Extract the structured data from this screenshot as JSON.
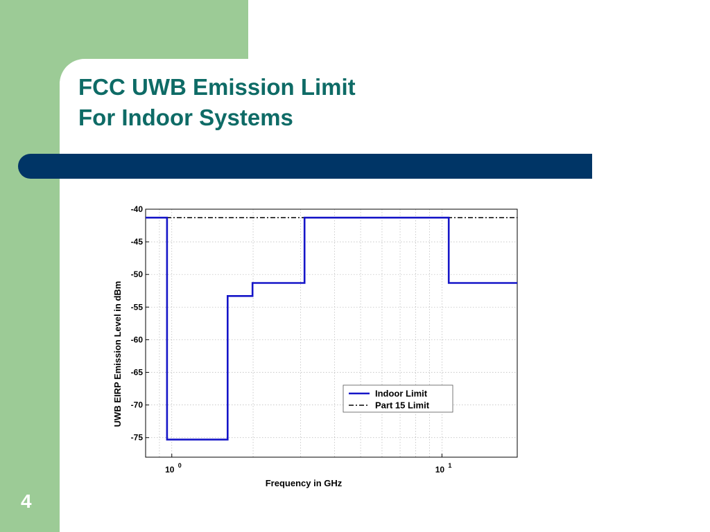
{
  "slide": {
    "title_line1": "FCC UWB Emission Limit",
    "title_line2": "For Indoor Systems",
    "page_number": "4",
    "colors": {
      "sidebar_green": "#9ccb96",
      "title_teal": "#0e6b66",
      "bar_navy": "#003566"
    }
  },
  "chart_data": {
    "type": "line",
    "xlabel": "Frequency in GHz",
    "ylabel": "UWB EIRP Emission Level in dBm",
    "x_scale": "log",
    "xlim": [
      0.8,
      19
    ],
    "ylim": [
      -78,
      -40
    ],
    "grid": true,
    "x_ticks": [
      {
        "value": 1,
        "base": "10",
        "exp": "0"
      },
      {
        "value": 10,
        "base": "10",
        "exp": "1"
      }
    ],
    "y_ticks": [
      -40,
      -45,
      -50,
      -55,
      -60,
      -65,
      -70,
      -75
    ],
    "legend_position": "lower-right",
    "series": [
      {
        "name": "Indoor Limit",
        "color": "#1515c8",
        "style": "solid",
        "step_points": [
          [
            0.8,
            -41.3
          ],
          [
            0.96,
            -41.3
          ],
          [
            0.96,
            -75.3
          ],
          [
            1.61,
            -75.3
          ],
          [
            1.61,
            -53.3
          ],
          [
            1.99,
            -53.3
          ],
          [
            1.99,
            -51.3
          ],
          [
            3.1,
            -51.3
          ],
          [
            3.1,
            -41.3
          ],
          [
            10.6,
            -41.3
          ],
          [
            10.6,
            -51.3
          ],
          [
            19,
            -51.3
          ]
        ]
      },
      {
        "name": "Part 15 Limit",
        "color": "#000000",
        "style": "dashdot",
        "step_points": [
          [
            0.8,
            -41.3
          ],
          [
            19,
            -41.3
          ]
        ]
      }
    ]
  }
}
